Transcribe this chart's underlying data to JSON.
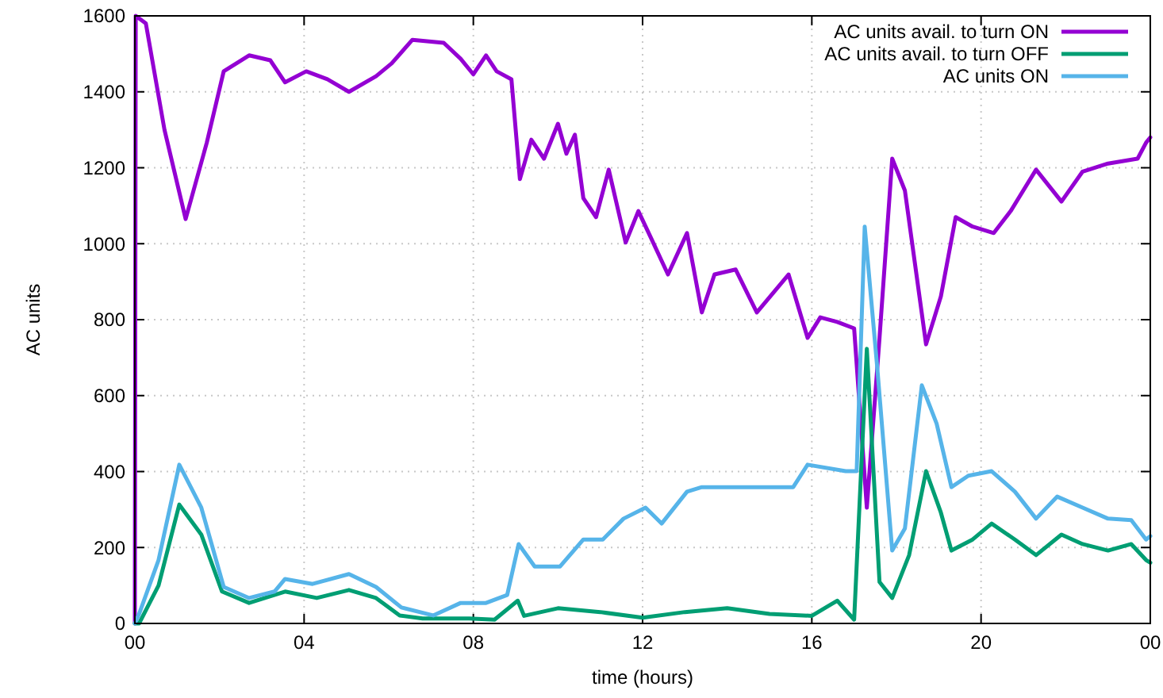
{
  "chart_data": {
    "type": "line",
    "xlabel": "time (hours)",
    "ylabel": "AC units",
    "xlim": [
      0,
      24
    ],
    "ylim": [
      0,
      1600
    ],
    "xticks": [
      {
        "value": 0,
        "label": "00"
      },
      {
        "value": 4,
        "label": "04"
      },
      {
        "value": 8,
        "label": "08"
      },
      {
        "value": 12,
        "label": "12"
      },
      {
        "value": 16,
        "label": "16"
      },
      {
        "value": 20,
        "label": "20"
      },
      {
        "value": 24,
        "label": "00"
      }
    ],
    "yticks": [
      0,
      200,
      400,
      600,
      800,
      1000,
      1200,
      1400,
      1600
    ],
    "grid": true,
    "legend": "top right",
    "line_style": "solid",
    "series": [
      {
        "name": "AC units avail. to turn ON",
        "color": "#9400d3",
        "x": [
          0,
          0.02,
          0.26,
          0.7,
          1.2,
          1.7,
          2.1,
          2.7,
          3.2,
          3.55,
          4.05,
          4.55,
          5.06,
          5.7,
          6.07,
          6.56,
          7.3,
          7.7,
          8.0,
          8.3,
          8.55,
          8.9,
          9.1,
          9.37,
          9.67,
          10.0,
          10.2,
          10.4,
          10.6,
          10.9,
          11.2,
          11.6,
          11.9,
          12.2,
          12.6,
          13.05,
          13.4,
          13.7,
          14.2,
          14.7,
          15.45,
          15.9,
          16.2,
          16.6,
          17.0,
          17.3,
          17.6,
          17.9,
          18.2,
          18.7,
          19.05,
          19.4,
          19.8,
          20.3,
          20.7,
          21.3,
          21.9,
          22.4,
          23.0,
          23.7,
          23.9,
          24
        ],
        "values": [
          0,
          1600,
          1580,
          1300,
          1065,
          1266,
          1454,
          1496,
          1483,
          1425,
          1454,
          1433,
          1400,
          1441,
          1475,
          1537,
          1529,
          1487,
          1446,
          1496,
          1454,
          1433,
          1170,
          1274,
          1224,
          1316,
          1237,
          1287,
          1120,
          1070,
          1195,
          1003,
          1086,
          1015,
          919,
          1028,
          819,
          919,
          932,
          819,
          919,
          752,
          806,
          794,
          777,
          305,
          752,
          1224,
          1140,
          735,
          861,
          1070,
          1045,
          1028,
          1086,
          1195,
          1111,
          1190,
          1211,
          1224,
          1266,
          1280
        ]
      },
      {
        "name": "AC units avail. to turn OFF",
        "color": "#009e73",
        "x": [
          0,
          0.1,
          0.56,
          1.05,
          1.57,
          2.06,
          2.7,
          3.55,
          4.3,
          5.06,
          5.7,
          6.26,
          6.8,
          7.9,
          8.5,
          9.05,
          9.2,
          10,
          11,
          12,
          13,
          14,
          15,
          16,
          16.6,
          17.0,
          17.3,
          17.6,
          17.9,
          18.3,
          18.7,
          19.05,
          19.3,
          19.8,
          20.25,
          20.8,
          21.3,
          21.9,
          22.4,
          23.0,
          23.55,
          23.9,
          24
        ],
        "values": [
          0,
          0,
          100,
          313,
          234,
          84,
          54,
          84,
          67,
          88,
          67,
          21,
          13,
          13,
          10,
          60,
          20,
          40,
          30,
          15,
          30,
          40,
          25,
          20,
          60,
          10,
          723,
          109,
          67,
          180,
          401,
          292,
          192,
          221,
          263,
          221,
          180,
          234,
          209,
          192,
          209,
          167,
          160
        ]
      },
      {
        "name": "AC units ON",
        "color": "#56b4e9",
        "x": [
          0,
          0.1,
          0.56,
          1.05,
          1.57,
          2.1,
          2.7,
          3.3,
          3.55,
          4.2,
          5.06,
          5.7,
          6.3,
          7.05,
          7.7,
          8.3,
          8.8,
          9.07,
          9.45,
          10.05,
          10.6,
          11.06,
          11.55,
          12.07,
          12.45,
          13.05,
          13.4,
          13.95,
          14.7,
          15.56,
          15.9,
          16.8,
          17.06,
          17.25,
          17.55,
          17.9,
          18.2,
          18.6,
          18.95,
          19.3,
          19.7,
          20.25,
          20.8,
          21.3,
          21.8,
          22.4,
          23.0,
          23.55,
          23.9,
          24
        ],
        "values": [
          0,
          25,
          167,
          418,
          305,
          96,
          67,
          84,
          117,
          104,
          130,
          96,
          42,
          21,
          54,
          54,
          75,
          209,
          150,
          150,
          221,
          221,
          276,
          305,
          263,
          347,
          359,
          359,
          359,
          359,
          418,
          401,
          401,
          1045,
          669,
          192,
          250,
          627,
          526,
          359,
          389,
          401,
          347,
          276,
          334,
          305,
          276,
          272,
          221,
          230
        ]
      }
    ]
  }
}
